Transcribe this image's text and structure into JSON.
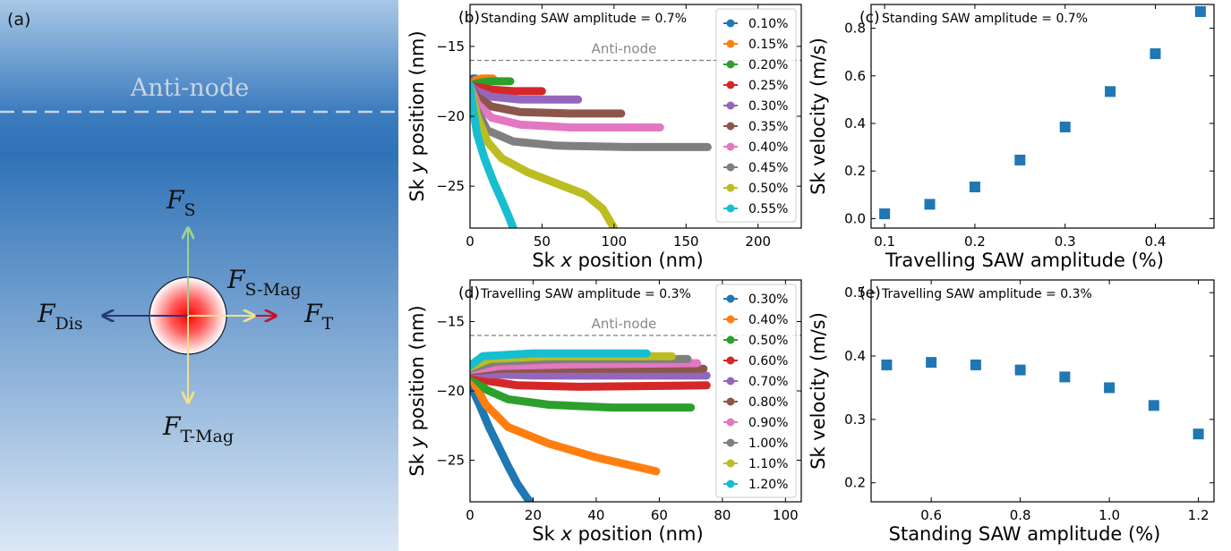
{
  "panel_a": {
    "label": "(a)",
    "antinode": "Anti-node",
    "force_s": {
      "main": "F",
      "sub": "S"
    },
    "force_smag": {
      "main": "F",
      "sub": "S-Mag"
    },
    "force_dis": {
      "main": "F",
      "sub": "Dis"
    },
    "force_t": {
      "main": "F",
      "sub": "T"
    },
    "force_tmag": {
      "main": "F",
      "sub": "T-Mag"
    },
    "colors": {
      "fs": "#9ed38e",
      "ft": "#c8102e",
      "fdis": "#253a78",
      "fmag": "#f2e08a",
      "antinode_line": "#c9d4e3"
    }
  },
  "chart_data": [
    {
      "id": "b",
      "type": "scatter",
      "panel_label": "(b)",
      "annotation": "Standing SAW amplitude = 0.7%",
      "reference_label": "Anti-node",
      "reference_y": -16,
      "xlabel_pre": "Sk ",
      "xlabel_var": "x",
      "xlabel_post": " position (nm)",
      "ylabel_pre": "Sk ",
      "ylabel_var": "y",
      "ylabel_post": " position (nm)",
      "xlim": [
        0,
        230
      ],
      "ylim": [
        -28,
        -12
      ],
      "xticks": [
        0,
        50,
        100,
        150,
        200
      ],
      "yticks": [
        -15,
        -20,
        -25
      ],
      "series": [
        {
          "name": "0.10%",
          "color": "#1f77b4",
          "points": [
            [
              0,
              -17.8
            ],
            [
              2,
              -17.3
            ],
            [
              4,
              -17.3
            ]
          ]
        },
        {
          "name": "0.15%",
          "color": "#ff7f0e",
          "points": [
            [
              0,
              -17.8
            ],
            [
              4,
              -17.4
            ],
            [
              8,
              -17.3
            ],
            [
              16,
              -17.3
            ]
          ]
        },
        {
          "name": "0.20%",
          "color": "#2ca02c",
          "points": [
            [
              0,
              -17.8
            ],
            [
              6,
              -17.6
            ],
            [
              14,
              -17.5
            ],
            [
              28,
              -17.5
            ]
          ]
        },
        {
          "name": "0.25%",
          "color": "#d62728",
          "points": [
            [
              0,
              -17.8
            ],
            [
              5,
              -17.9
            ],
            [
              15,
              -18.1
            ],
            [
              30,
              -18.2
            ],
            [
              50,
              -18.2
            ]
          ]
        },
        {
          "name": "0.30%",
          "color": "#9467bd",
          "points": [
            [
              0,
              -17.8
            ],
            [
              5,
              -18.2
            ],
            [
              15,
              -18.6
            ],
            [
              35,
              -18.8
            ],
            [
              55,
              -18.8
            ],
            [
              75,
              -18.8
            ]
          ]
        },
        {
          "name": "0.35%",
          "color": "#8c564b",
          "points": [
            [
              0,
              -17.8
            ],
            [
              5,
              -18.6
            ],
            [
              15,
              -19.3
            ],
            [
              35,
              -19.7
            ],
            [
              70,
              -19.8
            ],
            [
              105,
              -19.8
            ]
          ]
        },
        {
          "name": "0.40%",
          "color": "#e377c2",
          "points": [
            [
              0,
              -17.8
            ],
            [
              5,
              -19.1
            ],
            [
              15,
              -20.1
            ],
            [
              35,
              -20.6
            ],
            [
              70,
              -20.8
            ],
            [
              132,
              -20.8
            ]
          ]
        },
        {
          "name": "0.45%",
          "color": "#7f7f7f",
          "points": [
            [
              0,
              -17.8
            ],
            [
              4,
              -19.4
            ],
            [
              12,
              -21.0
            ],
            [
              30,
              -21.8
            ],
            [
              60,
              -22.1
            ],
            [
              110,
              -22.2
            ],
            [
              165,
              -22.2
            ]
          ]
        },
        {
          "name": "0.50%",
          "color": "#bcbd22",
          "points": [
            [
              0,
              -17.8
            ],
            [
              5,
              -20.0
            ],
            [
              12,
              -21.8
            ],
            [
              22,
              -23.0
            ],
            [
              40,
              -24.0
            ],
            [
              60,
              -24.8
            ],
            [
              80,
              -25.6
            ],
            [
              92,
              -26.6
            ],
            [
              100,
              -28.0
            ]
          ]
        },
        {
          "name": "0.55%",
          "color": "#17becf",
          "points": [
            [
              0,
              -17.8
            ],
            [
              2,
              -19.4
            ],
            [
              5,
              -21.3
            ],
            [
              10,
              -23.0
            ],
            [
              16,
              -24.6
            ],
            [
              22,
              -26.0
            ],
            [
              27,
              -27.2
            ],
            [
              30,
              -28.0
            ]
          ]
        }
      ]
    },
    {
      "id": "c",
      "type": "scatter",
      "panel_label": "(c)",
      "annotation": "Standing SAW amplitude = 0.7%",
      "xlabel": "Travelling SAW amplitude (%)",
      "ylabel": "Sk velocity (m/s)",
      "xlim": [
        0.085,
        0.465
      ],
      "ylim": [
        -0.04,
        0.9
      ],
      "xticks": [
        0.1,
        0.2,
        0.3,
        0.4
      ],
      "yticks": [
        0.0,
        0.2,
        0.4,
        0.6,
        0.8
      ],
      "color": "#1f77b4",
      "x": [
        0.1,
        0.15,
        0.2,
        0.25,
        0.3,
        0.35,
        0.4,
        0.45
      ],
      "y": [
        0.02,
        0.06,
        0.133,
        0.246,
        0.385,
        0.534,
        0.693,
        0.87
      ]
    },
    {
      "id": "d",
      "type": "scatter",
      "panel_label": "(d)",
      "annotation": "Travelling SAW amplitude = 0.3%",
      "reference_label": "Anti-node",
      "reference_y": -16,
      "xlabel_pre": "Sk ",
      "xlabel_var": "x",
      "xlabel_post": " position (nm)",
      "ylabel_pre": "Sk ",
      "ylabel_var": "y",
      "ylabel_post": " position (nm)",
      "xlim": [
        0,
        105
      ],
      "ylim": [
        -28,
        -12
      ],
      "xticks": [
        0,
        20,
        40,
        60,
        80,
        100
      ],
      "yticks": [
        -15,
        -20,
        -25
      ],
      "series": [
        {
          "name": "0.30%",
          "color": "#1f77b4",
          "points": [
            [
              0,
              -19.5
            ],
            [
              3,
              -21.0
            ],
            [
              6,
              -22.6
            ],
            [
              9,
              -24.0
            ],
            [
              12,
              -25.4
            ],
            [
              15,
              -26.7
            ],
            [
              18,
              -27.7
            ],
            [
              19,
              -28.0
            ]
          ]
        },
        {
          "name": "0.40%",
          "color": "#ff7f0e",
          "points": [
            [
              0,
              -18.9
            ],
            [
              5,
              -21.0
            ],
            [
              12,
              -22.6
            ],
            [
              25,
              -23.8
            ],
            [
              40,
              -24.8
            ],
            [
              59,
              -25.8
            ]
          ]
        },
        {
          "name": "0.50%",
          "color": "#2ca02c",
          "points": [
            [
              0,
              -18.7
            ],
            [
              5,
              -19.9
            ],
            [
              12,
              -20.6
            ],
            [
              25,
              -21.0
            ],
            [
              45,
              -21.2
            ],
            [
              70,
              -21.2
            ]
          ]
        },
        {
          "name": "0.60%",
          "color": "#d62728",
          "points": [
            [
              0,
              -18.6
            ],
            [
              6,
              -19.3
            ],
            [
              15,
              -19.6
            ],
            [
              35,
              -19.7
            ],
            [
              75,
              -19.6
            ]
          ]
        },
        {
          "name": "0.70%",
          "color": "#9467bd",
          "points": [
            [
              0,
              -18.6
            ],
            [
              6,
              -18.8
            ],
            [
              20,
              -18.9
            ],
            [
              50,
              -18.9
            ],
            [
              75,
              -18.9
            ]
          ]
        },
        {
          "name": "0.80%",
          "color": "#8c564b",
          "points": [
            [
              0,
              -18.6
            ],
            [
              10,
              -18.4
            ],
            [
              30,
              -18.4
            ],
            [
              74,
              -18.4
            ]
          ]
        },
        {
          "name": "0.90%",
          "color": "#e377c2",
          "points": [
            [
              0,
              -18.5
            ],
            [
              10,
              -18.2
            ],
            [
              30,
              -18.1
            ],
            [
              72,
              -18.0
            ]
          ]
        },
        {
          "name": "1.00%",
          "color": "#7f7f7f",
          "points": [
            [
              0,
              -18.4
            ],
            [
              8,
              -17.9
            ],
            [
              30,
              -17.7
            ],
            [
              69,
              -17.7
            ]
          ]
        },
        {
          "name": "1.10%",
          "color": "#bcbd22",
          "points": [
            [
              0,
              -18.3
            ],
            [
              6,
              -17.7
            ],
            [
              25,
              -17.5
            ],
            [
              64,
              -17.5
            ]
          ]
        },
        {
          "name": "1.20%",
          "color": "#17becf",
          "points": [
            [
              0,
              -18.2
            ],
            [
              4,
              -17.5
            ],
            [
              20,
              -17.3
            ],
            [
              56,
              -17.3
            ]
          ]
        }
      ]
    },
    {
      "id": "e",
      "type": "scatter",
      "panel_label": "(e)",
      "annotation": "Travelling SAW amplitude = 0.3%",
      "xlabel": "Standing SAW amplitude (%)",
      "ylabel": "Sk velocity (m/s)",
      "xlim": [
        0.465,
        1.235
      ],
      "ylim": [
        0.17,
        0.52
      ],
      "xticks": [
        0.6,
        0.8,
        1.0,
        1.2
      ],
      "yticks": [
        0.2,
        0.3,
        0.4,
        0.5
      ],
      "color": "#1f77b4",
      "x": [
        0.5,
        0.6,
        0.7,
        0.8,
        0.9,
        1.0,
        1.1,
        1.2
      ],
      "y": [
        0.386,
        0.39,
        0.386,
        0.378,
        0.367,
        0.35,
        0.322,
        0.277
      ]
    }
  ]
}
